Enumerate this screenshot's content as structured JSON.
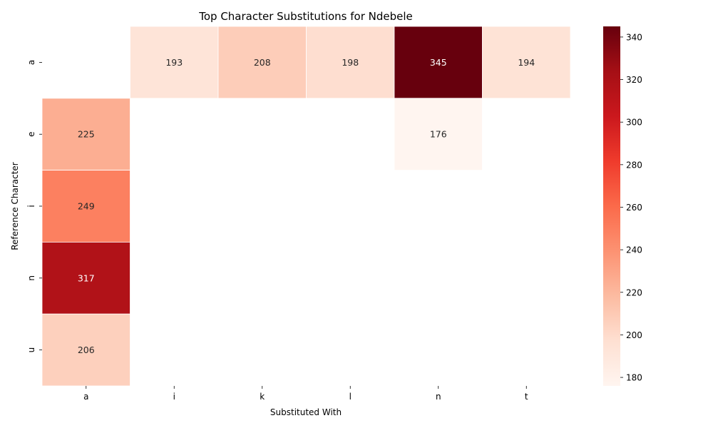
{
  "chart_data": {
    "type": "heatmap",
    "title": "Top Character Substitutions for Ndebele",
    "xlabel": "Substituted With",
    "ylabel": "Reference Character",
    "x_categories": [
      "a",
      "i",
      "k",
      "l",
      "n",
      "t"
    ],
    "y_categories": [
      "a",
      "e",
      "i",
      "n",
      "u"
    ],
    "values": [
      [
        null,
        193,
        208,
        198,
        345,
        194
      ],
      [
        225,
        null,
        null,
        null,
        176,
        null
      ],
      [
        249,
        null,
        null,
        null,
        null,
        null
      ],
      [
        317,
        null,
        null,
        null,
        null,
        null
      ],
      [
        206,
        null,
        null,
        null,
        null,
        null
      ]
    ],
    "colormap": "Reds",
    "colorbar": {
      "range": [
        176,
        345
      ],
      "ticks": [
        180,
        200,
        220,
        240,
        260,
        280,
        300,
        320,
        340
      ]
    },
    "grid": false,
    "legend": "colorbar-right"
  }
}
